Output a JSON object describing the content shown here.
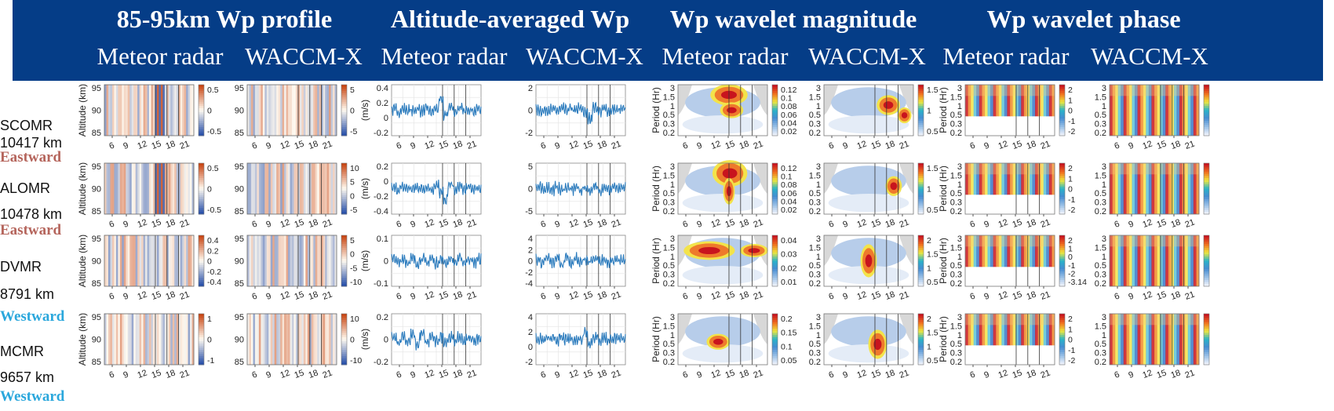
{
  "header": {
    "groups": [
      {
        "title": "85-95km Wp profile"
      },
      {
        "title": "Altitude-averaged Wp"
      },
      {
        "title": "Wp wavelet magnitude"
      },
      {
        "title": "Wp wavelet phase"
      }
    ],
    "subtitles": [
      "Meteor radar",
      "WACCM-X",
      "Meteor radar",
      "WACCM-X",
      "Meteor radar",
      "WACCM-X",
      "Meteor radar",
      "WACCM-X"
    ]
  },
  "stations": [
    {
      "name": "SCOMR",
      "distance": "10417 km",
      "direction": "Eastward",
      "color": "#b5655c"
    },
    {
      "name": "ALOMR",
      "distance": "10478 km",
      "direction": "Eastward",
      "color": "#b5655c"
    },
    {
      "name": "DVMR",
      "distance": "8791 km",
      "direction": "Westward",
      "color": "#2aa7dc"
    },
    {
      "name": "MCMR",
      "distance": "9657 km",
      "direction": "Westward",
      "color": "#2aa7dc"
    }
  ],
  "chart_data": {
    "type": "heatmap",
    "x_ticks": [
      "6",
      "9",
      "12",
      "15",
      "18",
      "21"
    ],
    "profile": {
      "ylabel": "Altitude (km)",
      "y_ticks": [
        "95",
        "90",
        "85"
      ],
      "colorbars": [
        [
          [
            "0.5",
            "0",
            "-0.5"
          ],
          [
            "5",
            "0",
            "-5"
          ]
        ],
        [
          [
            "0.5",
            "0",
            "-0.5"
          ],
          [
            "10",
            "5",
            "0",
            "-5"
          ]
        ],
        [
          [
            "0.4",
            "0.2",
            "0",
            "-0.2",
            "-0.4"
          ],
          [
            "5",
            "0",
            "-5",
            "-10"
          ]
        ],
        [
          [
            "1",
            "0",
            "-1"
          ],
          [
            "10",
            "0",
            "-10"
          ]
        ]
      ]
    },
    "averaged": {
      "type": "line",
      "ylabel": "(m/s)",
      "y_ticks_radar": [
        [
          "0.4",
          "0.2",
          "0",
          "-0.2"
        ],
        [
          "0.2",
          "0",
          "-0.2",
          "-0.4"
        ],
        [
          "0.1",
          "0",
          "-0.1"
        ],
        [
          "0.2",
          "0",
          "-0.2"
        ]
      ],
      "y_ticks_waccm": [
        [
          "2",
          "0",
          "-2"
        ],
        [
          "5",
          "0",
          "-5"
        ],
        [
          "4",
          "2",
          "0",
          "-2",
          "-4"
        ],
        [
          "4",
          "2",
          "0",
          "-2"
        ]
      ],
      "series": [
        {
          "values": [
            0.02,
            -0.05,
            0.04,
            0.0,
            -0.03,
            0.05,
            -0.02,
            0.03,
            -0.06,
            0.05,
            0.35,
            -0.18,
            0.12,
            -0.05,
            0.08,
            -0.04,
            0.06,
            -0.03,
            0.05
          ]
        },
        {
          "values": [
            0.01,
            -0.03,
            0.04,
            0.02,
            -0.02,
            0.05,
            0.0,
            0.06,
            -0.02,
            0.1,
            -0.15,
            -0.4,
            0.15,
            -0.05,
            0.06,
            -0.02,
            0.04,
            0.0,
            0.03
          ]
        },
        {
          "values": [
            0.06,
            -0.07,
            0.08,
            -0.05,
            0.07,
            -0.08,
            0.06,
            -0.06,
            0.08,
            -0.07,
            0.05,
            -0.08,
            0.07,
            -0.06,
            0.08,
            -0.05,
            0.07,
            -0.06,
            0.05
          ]
        },
        {
          "values": [
            0.05,
            -0.1,
            0.12,
            -0.08,
            0.15,
            -0.2,
            0.18,
            -0.12,
            0.1,
            -0.08,
            0.09,
            -0.07,
            0.06,
            -0.05,
            0.05,
            -0.04,
            0.04,
            -0.03,
            0.02
          ]
        }
      ]
    },
    "magnitude": {
      "ylabel": "Period (Hr)",
      "y_ticks": [
        "3",
        "1.5",
        "1",
        "0.5",
        "0.3",
        "0.2"
      ],
      "colorbars": [
        [
          [
            "0.12",
            "0.1",
            "0.08",
            "0.06",
            "0.04",
            "0.02"
          ],
          [
            "1.5",
            "1",
            "0.5"
          ]
        ],
        [
          [
            "0.12",
            "0.1",
            "0.08",
            "0.06",
            "0.04",
            "0.02"
          ],
          [
            "1.5",
            "1",
            "0.5"
          ]
        ],
        [
          [
            "0.04",
            "0.03",
            "0.02",
            "0.01"
          ],
          [
            "2",
            "1.5",
            "1",
            "0.5"
          ]
        ],
        [
          [
            "0.2",
            "0.15",
            "0.1",
            "0.05"
          ],
          [
            "2",
            "1.5",
            "1",
            "0.5"
          ]
        ]
      ]
    },
    "phase": {
      "ylabel": "Period (Hr)",
      "y_ticks": [
        "3",
        "1.5",
        "1",
        "0.5",
        "0.3",
        "0.2"
      ],
      "colorbars": [
        [
          [
            "2",
            "1",
            "0",
            "-1",
            "-2"
          ]
        ],
        [
          [
            "2",
            "1",
            "0",
            "-1",
            "-2"
          ]
        ],
        [
          [
            "2",
            "1",
            "0",
            "-1",
            "-2",
            "-3.14"
          ]
        ],
        [
          [
            "2",
            "1",
            "0",
            "-1",
            "-2"
          ]
        ]
      ]
    }
  }
}
